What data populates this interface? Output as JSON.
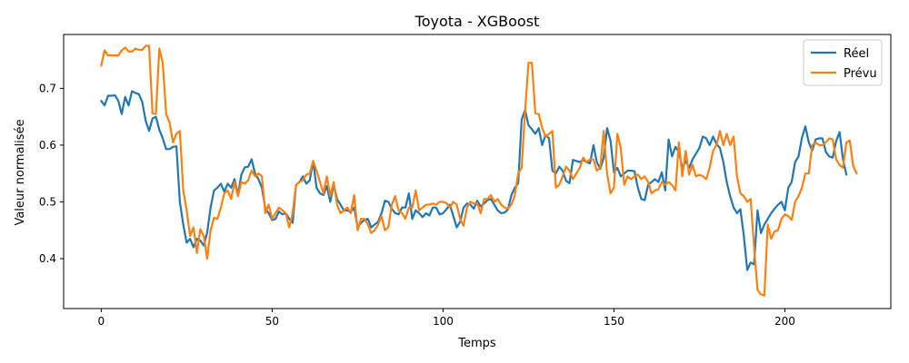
{
  "chart_data": {
    "type": "line",
    "title": "Toyota - XGBoost",
    "xlabel": "Temps",
    "ylabel": "Valeur normalisée",
    "xlim": [
      -11,
      231
    ],
    "ylim": [
      0.312,
      0.795
    ],
    "xticks": [
      0,
      50,
      100,
      150,
      200
    ],
    "yticks": [
      0.4,
      0.5,
      0.6,
      0.7
    ],
    "grid": false,
    "legend": {
      "placement": "top-right"
    },
    "series": [
      {
        "name": "Réel",
        "color": "#1f77b4",
        "values": [
          0.678,
          0.67,
          0.687,
          0.687,
          0.688,
          0.678,
          0.655,
          0.685,
          0.67,
          0.695,
          0.692,
          0.69,
          0.676,
          0.643,
          0.625,
          0.647,
          0.65,
          0.627,
          0.612,
          0.593,
          0.593,
          0.597,
          0.598,
          0.5,
          0.46,
          0.428,
          0.435,
          0.42,
          0.435,
          0.432,
          0.423,
          0.446,
          0.49,
          0.52,
          0.525,
          0.532,
          0.518,
          0.532,
          0.525,
          0.54,
          0.512,
          0.548,
          0.561,
          0.562,
          0.575,
          0.55,
          0.54,
          0.525,
          0.488,
          0.48,
          0.468,
          0.47,
          0.483,
          0.478,
          0.48,
          0.47,
          0.463,
          0.53,
          0.535,
          0.545,
          0.532,
          0.538,
          0.572,
          0.525,
          0.515,
          0.512,
          0.528,
          0.5,
          0.53,
          0.505,
          0.495,
          0.485,
          0.485,
          0.482,
          0.49,
          0.455,
          0.463,
          0.468,
          0.47,
          0.455,
          0.46,
          0.465,
          0.48,
          0.502,
          0.5,
          0.488,
          0.48,
          0.478,
          0.49,
          0.49,
          0.515,
          0.47,
          0.485,
          0.48,
          0.473,
          0.48,
          0.476,
          0.49,
          0.49,
          0.478,
          0.48,
          0.487,
          0.495,
          0.475,
          0.455,
          0.465,
          0.49,
          0.497,
          0.495,
          0.488,
          0.502,
          0.492,
          0.497,
          0.503,
          0.505,
          0.495,
          0.485,
          0.48,
          0.481,
          0.487,
          0.512,
          0.525,
          0.533,
          0.645,
          0.662,
          0.635,
          0.628,
          0.62,
          0.63,
          0.6,
          0.618,
          0.612,
          0.555,
          0.55,
          0.562,
          0.555,
          0.537,
          0.533,
          0.574,
          0.572,
          0.57,
          0.574,
          0.57,
          0.568,
          0.6,
          0.57,
          0.558,
          0.578,
          0.63,
          0.608,
          0.552,
          0.56,
          0.545,
          0.55,
          0.555,
          0.555,
          0.554,
          0.525,
          0.505,
          0.503,
          0.53,
          0.535,
          0.54,
          0.535,
          0.552,
          0.52,
          0.61,
          0.58,
          0.597,
          0.588,
          0.56,
          0.572,
          0.56,
          0.575,
          0.585,
          0.595,
          0.615,
          0.612,
          0.6,
          0.615,
          0.602,
          0.595,
          0.57,
          0.535,
          0.51,
          0.49,
          0.48,
          0.487,
          0.44,
          0.38,
          0.393,
          0.39,
          0.485,
          0.445,
          0.46,
          0.47,
          0.48,
          0.488,
          0.495,
          0.5,
          0.485,
          0.525,
          0.535,
          0.57,
          0.58,
          0.613,
          0.633,
          0.605,
          0.59,
          0.61,
          0.612,
          0.612,
          0.588,
          0.58,
          0.578,
          0.607,
          0.623,
          0.575,
          0.548
        ]
      },
      {
        "name": "Prévu",
        "color": "#ff7f0e",
        "values": [
          0.74,
          0.767,
          0.758,
          0.758,
          0.758,
          0.758,
          0.767,
          0.772,
          0.765,
          0.765,
          0.77,
          0.768,
          0.768,
          0.775,
          0.775,
          0.656,
          0.655,
          0.77,
          0.745,
          0.655,
          0.64,
          0.605,
          0.62,
          0.625,
          0.52,
          0.485,
          0.44,
          0.455,
          0.41,
          0.452,
          0.44,
          0.4,
          0.45,
          0.472,
          0.47,
          0.49,
          0.515,
          0.52,
          0.505,
          0.535,
          0.51,
          0.535,
          0.532,
          0.538,
          0.555,
          0.545,
          0.55,
          0.545,
          0.48,
          0.495,
          0.47,
          0.48,
          0.49,
          0.485,
          0.48,
          0.455,
          0.48,
          0.53,
          0.535,
          0.538,
          0.548,
          0.55,
          0.572,
          0.555,
          0.535,
          0.515,
          0.545,
          0.51,
          0.535,
          0.495,
          0.48,
          0.485,
          0.49,
          0.48,
          0.512,
          0.45,
          0.47,
          0.47,
          0.46,
          0.445,
          0.45,
          0.46,
          0.475,
          0.45,
          0.455,
          0.495,
          0.51,
          0.485,
          0.48,
          0.47,
          0.49,
          0.49,
          0.52,
          0.485,
          0.49,
          0.495,
          0.495,
          0.497,
          0.495,
          0.5,
          0.5,
          0.498,
          0.49,
          0.5,
          0.495,
          0.47,
          0.458,
          0.49,
          0.5,
          0.497,
          0.498,
          0.48,
          0.505,
          0.505,
          0.512,
          0.5,
          0.505,
          0.495,
          0.49,
          0.488,
          0.495,
          0.512,
          0.55,
          0.56,
          0.66,
          0.745,
          0.745,
          0.656,
          0.655,
          0.63,
          0.615,
          0.62,
          0.625,
          0.525,
          0.53,
          0.545,
          0.562,
          0.555,
          0.54,
          0.55,
          0.56,
          0.578,
          0.57,
          0.575,
          0.575,
          0.555,
          0.56,
          0.625,
          0.55,
          0.515,
          0.525,
          0.62,
          0.595,
          0.53,
          0.545,
          0.54,
          0.545,
          0.548,
          0.54,
          0.545,
          0.535,
          0.515,
          0.52,
          0.522,
          0.535,
          0.53,
          0.535,
          0.53,
          0.52,
          0.605,
          0.545,
          0.59,
          0.548,
          0.565,
          0.545,
          0.548,
          0.545,
          0.54,
          0.56,
          0.59,
          0.6,
          0.625,
          0.6,
          0.62,
          0.6,
          0.615,
          0.545,
          0.515,
          0.51,
          0.5,
          0.505,
          0.42,
          0.345,
          0.337,
          0.335,
          0.46,
          0.435,
          0.448,
          0.45,
          0.47,
          0.478,
          0.475,
          0.468,
          0.5,
          0.51,
          0.525,
          0.55,
          0.55,
          0.6,
          0.605,
          0.6,
          0.6,
          0.605,
          0.612,
          0.61,
          0.575,
          0.565,
          0.56,
          0.605,
          0.608,
          0.563,
          0.55
        ]
      }
    ]
  }
}
